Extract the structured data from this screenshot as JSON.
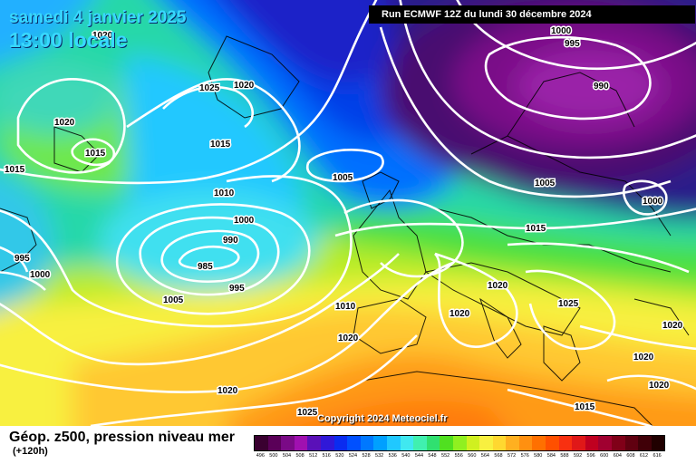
{
  "header": {
    "date": "samedi 4 janvier 2025",
    "time": "13:00 locale",
    "run": "Run ECMWF 12Z du lundi 30 décembre 2024"
  },
  "copyright": "Copyright 2024 Meteociel.fr",
  "footer": {
    "parameter": "Géop. z500, pression niveau mer",
    "lead_time": "(+120h)"
  },
  "color_scale": {
    "labels": [
      "496",
      "500",
      "504",
      "508",
      "512",
      "516",
      "520",
      "524",
      "528",
      "532",
      "536",
      "540",
      "544",
      "548",
      "552",
      "556",
      "560",
      "564",
      "568",
      "572",
      "576",
      "580",
      "584",
      "588",
      "592",
      "596",
      "600",
      "604",
      "608",
      "612",
      "616"
    ],
    "colors": [
      "#3a0030",
      "#5a0058",
      "#7a0a86",
      "#a010b0",
      "#5a10b8",
      "#3018d8",
      "#0a2cf0",
      "#0050ff",
      "#0078ff",
      "#00a0ff",
      "#20c8ff",
      "#40e8f0",
      "#40f0b0",
      "#30e070",
      "#50e020",
      "#90f020",
      "#d0f020",
      "#f8f040",
      "#ffd830",
      "#ffb020",
      "#ff9010",
      "#ff7000",
      "#ff5000",
      "#f83010",
      "#e01818",
      "#c00020",
      "#a00030",
      "#800018",
      "#600010",
      "#400008",
      "#200000"
    ]
  },
  "colors": {
    "isobar": "#ffffff",
    "title": "#38d8ff",
    "low_purple": "#7a1088",
    "ridge_orange": "#ff9010"
  },
  "isobar_labels": [
    {
      "id": "l1020-a",
      "text": "1020"
    },
    {
      "id": "l1025-a",
      "text": "1025"
    },
    {
      "id": "l1020-b",
      "text": "1020"
    },
    {
      "id": "l1020-c",
      "text": "1020"
    },
    {
      "id": "l1015-a",
      "text": "1015"
    },
    {
      "id": "l1015-b",
      "text": "1015"
    },
    {
      "id": "l1015-c",
      "text": "1015"
    },
    {
      "id": "l1010-a",
      "text": "1010"
    },
    {
      "id": "l1005-a",
      "text": "1005"
    },
    {
      "id": "l1000-a",
      "text": "1000"
    },
    {
      "id": "l990-a",
      "text": "990"
    },
    {
      "id": "l985-a",
      "text": "985"
    },
    {
      "id": "l995-a",
      "text": "995"
    },
    {
      "id": "l995-b",
      "text": "995"
    },
    {
      "id": "l1000-b",
      "text": "1000"
    },
    {
      "id": "l1005-b",
      "text": "1005"
    },
    {
      "id": "l1010-b",
      "text": "1010"
    },
    {
      "id": "l1020-d",
      "text": "1020"
    },
    {
      "id": "l1020-e",
      "text": "1020"
    },
    {
      "id": "l1025-b",
      "text": "1025"
    },
    {
      "id": "l1000-c",
      "text": "1000"
    },
    {
      "id": "l995-c",
      "text": "995"
    },
    {
      "id": "l990-b",
      "text": "990"
    },
    {
      "id": "l1005-c",
      "text": "1005"
    },
    {
      "id": "l1000-d",
      "text": "1000"
    },
    {
      "id": "l1015-d",
      "text": "1015"
    },
    {
      "id": "l1020-f",
      "text": "1020"
    },
    {
      "id": "l1020-g",
      "text": "1020"
    },
    {
      "id": "l1025-c",
      "text": "1025"
    },
    {
      "id": "l1020-h",
      "text": "1020"
    },
    {
      "id": "l1020-i",
      "text": "1020"
    },
    {
      "id": "l1015-e",
      "text": "1015"
    },
    {
      "id": "l1020-j",
      "text": "1020"
    }
  ]
}
